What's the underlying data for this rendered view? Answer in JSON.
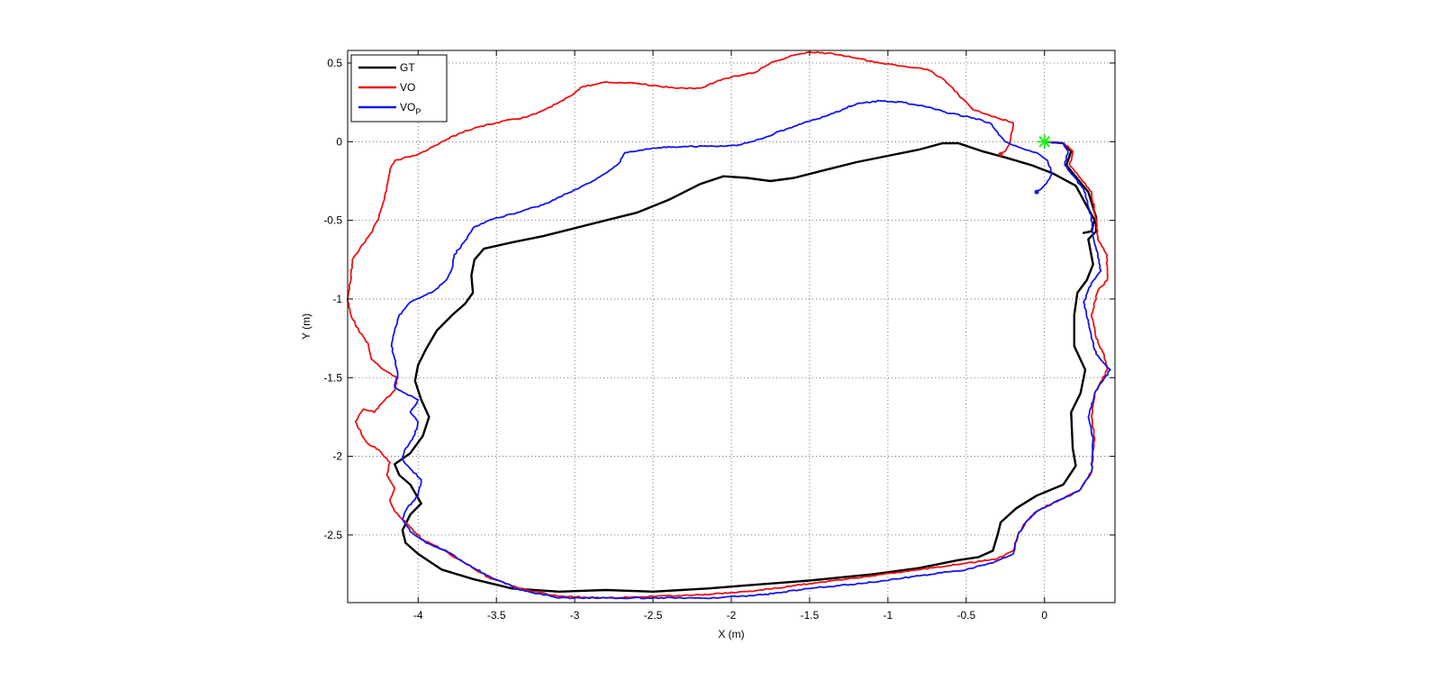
{
  "chart_data": {
    "type": "line",
    "title": "",
    "xlabel": "X (m)",
    "ylabel": "Y (m)",
    "xlim": [
      -4.45,
      0.45
    ],
    "ylim": [
      -2.93,
      0.58
    ],
    "x_ticks": [
      -4,
      -3.5,
      -3,
      -2.5,
      -2,
      -1.5,
      -1,
      -0.5,
      0
    ],
    "y_ticks": [
      0.5,
      0,
      -0.5,
      -1,
      -1.5,
      -2,
      -2.5
    ],
    "x_tick_labels": [
      "-4",
      "-3.5",
      "-3",
      "-2.5",
      "-2",
      "-1.5",
      "-1",
      "-0.5",
      "0"
    ],
    "y_tick_labels": [
      "0.5",
      "0",
      "-0.5",
      "-1",
      "-1.5",
      "-2",
      "-2.5"
    ],
    "grid": true,
    "legend_position": "top-left",
    "start_marker": {
      "x": 0,
      "y": 0,
      "color": "#22ee22",
      "shape": "asterisk"
    },
    "series": [
      {
        "name": "GT",
        "name_main": "GT",
        "name_sub": "",
        "color": "#000000",
        "width": 2.4,
        "jitter": 0,
        "points": [
          [
            0.0,
            0.0
          ],
          [
            0.12,
            -0.01
          ],
          [
            0.17,
            -0.06
          ],
          [
            0.14,
            -0.15
          ],
          [
            0.28,
            -0.32
          ],
          [
            0.33,
            -0.48
          ],
          [
            0.33,
            -0.57
          ],
          [
            0.28,
            -0.62
          ],
          [
            0.31,
            -0.78
          ],
          [
            0.27,
            -0.88
          ],
          [
            0.21,
            -0.96
          ],
          [
            0.19,
            -1.1
          ],
          [
            0.19,
            -1.3
          ],
          [
            0.26,
            -1.45
          ],
          [
            0.23,
            -1.6
          ],
          [
            0.17,
            -1.72
          ],
          [
            0.18,
            -1.95
          ],
          [
            0.2,
            -2.06
          ],
          [
            0.12,
            -2.18
          ],
          [
            -0.05,
            -2.25
          ],
          [
            -0.18,
            -2.33
          ],
          [
            -0.28,
            -2.42
          ],
          [
            -0.3,
            -2.5
          ],
          [
            -0.33,
            -2.6
          ],
          [
            -0.42,
            -2.64
          ],
          [
            -0.55,
            -2.66
          ],
          [
            -0.8,
            -2.71
          ],
          [
            -1.1,
            -2.75
          ],
          [
            -1.5,
            -2.79
          ],
          [
            -1.9,
            -2.82
          ],
          [
            -2.15,
            -2.84
          ],
          [
            -2.5,
            -2.86
          ],
          [
            -2.8,
            -2.85
          ],
          [
            -3.1,
            -2.86
          ],
          [
            -3.4,
            -2.84
          ],
          [
            -3.65,
            -2.78
          ],
          [
            -3.85,
            -2.72
          ],
          [
            -4.0,
            -2.62
          ],
          [
            -4.08,
            -2.55
          ],
          [
            -4.1,
            -2.47
          ],
          [
            -4.05,
            -2.37
          ],
          [
            -3.98,
            -2.3
          ],
          [
            -4.05,
            -2.18
          ],
          [
            -4.12,
            -2.12
          ],
          [
            -4.15,
            -2.05
          ],
          [
            -4.05,
            -1.98
          ],
          [
            -3.97,
            -1.87
          ],
          [
            -3.93,
            -1.75
          ],
          [
            -3.98,
            -1.64
          ],
          [
            -4.02,
            -1.52
          ],
          [
            -4.0,
            -1.42
          ],
          [
            -3.95,
            -1.32
          ],
          [
            -3.88,
            -1.2
          ],
          [
            -3.78,
            -1.1
          ],
          [
            -3.7,
            -1.03
          ],
          [
            -3.65,
            -0.96
          ],
          [
            -3.66,
            -0.85
          ],
          [
            -3.64,
            -0.75
          ],
          [
            -3.58,
            -0.68
          ],
          [
            -3.4,
            -0.64
          ],
          [
            -3.2,
            -0.6
          ],
          [
            -3.0,
            -0.55
          ],
          [
            -2.8,
            -0.5
          ],
          [
            -2.6,
            -0.45
          ],
          [
            -2.4,
            -0.37
          ],
          [
            -2.2,
            -0.27
          ],
          [
            -2.05,
            -0.22
          ],
          [
            -1.9,
            -0.23
          ],
          [
            -1.75,
            -0.25
          ],
          [
            -1.6,
            -0.23
          ],
          [
            -1.4,
            -0.18
          ],
          [
            -1.2,
            -0.13
          ],
          [
            -1.0,
            -0.09
          ],
          [
            -0.8,
            -0.05
          ],
          [
            -0.65,
            -0.01
          ],
          [
            -0.55,
            -0.01
          ],
          [
            -0.4,
            -0.06
          ],
          [
            -0.25,
            -0.1
          ],
          [
            -0.08,
            -0.15
          ],
          [
            0.05,
            -0.2
          ],
          [
            0.2,
            -0.28
          ],
          [
            0.32,
            -0.5
          ],
          [
            0.3,
            -0.57
          ],
          [
            0.25,
            -0.58
          ]
        ]
      },
      {
        "name": "VO",
        "name_main": "VO",
        "name_sub": "",
        "color": "#ee1111",
        "width": 1.8,
        "jitter": 0.7,
        "points": [
          [
            0.0,
            0.0
          ],
          [
            0.12,
            -0.01
          ],
          [
            0.18,
            -0.06
          ],
          [
            0.16,
            -0.15
          ],
          [
            0.3,
            -0.32
          ],
          [
            0.33,
            -0.5
          ],
          [
            0.34,
            -0.62
          ],
          [
            0.4,
            -0.72
          ],
          [
            0.4,
            -0.88
          ],
          [
            0.34,
            -0.95
          ],
          [
            0.3,
            -1.1
          ],
          [
            0.33,
            -1.25
          ],
          [
            0.38,
            -1.35
          ],
          [
            0.4,
            -1.45
          ],
          [
            0.32,
            -1.6
          ],
          [
            0.3,
            -1.75
          ],
          [
            0.32,
            -1.88
          ],
          [
            0.3,
            -2.1
          ],
          [
            0.22,
            -2.22
          ],
          [
            0.05,
            -2.3
          ],
          [
            -0.05,
            -2.35
          ],
          [
            -0.12,
            -2.42
          ],
          [
            -0.17,
            -2.5
          ],
          [
            -0.2,
            -2.6
          ],
          [
            -0.3,
            -2.65
          ],
          [
            -0.5,
            -2.68
          ],
          [
            -0.8,
            -2.72
          ],
          [
            -1.1,
            -2.76
          ],
          [
            -1.5,
            -2.81
          ],
          [
            -1.9,
            -2.86
          ],
          [
            -2.2,
            -2.88
          ],
          [
            -2.5,
            -2.89
          ],
          [
            -2.8,
            -2.9
          ],
          [
            -3.1,
            -2.89
          ],
          [
            -3.35,
            -2.84
          ],
          [
            -3.55,
            -2.77
          ],
          [
            -3.7,
            -2.68
          ],
          [
            -3.85,
            -2.59
          ],
          [
            -3.97,
            -2.53
          ],
          [
            -4.05,
            -2.45
          ],
          [
            -4.15,
            -2.35
          ],
          [
            -4.18,
            -2.28
          ],
          [
            -4.15,
            -2.2
          ],
          [
            -4.2,
            -2.12
          ],
          [
            -4.18,
            -2.04
          ],
          [
            -4.25,
            -1.96
          ],
          [
            -4.32,
            -1.92
          ],
          [
            -4.35,
            -1.88
          ],
          [
            -4.4,
            -1.78
          ],
          [
            -4.35,
            -1.7
          ],
          [
            -4.28,
            -1.72
          ],
          [
            -4.22,
            -1.65
          ],
          [
            -4.15,
            -1.58
          ],
          [
            -4.13,
            -1.5
          ],
          [
            -4.22,
            -1.45
          ],
          [
            -4.3,
            -1.38
          ],
          [
            -4.32,
            -1.28
          ],
          [
            -4.38,
            -1.2
          ],
          [
            -4.43,
            -1.1
          ],
          [
            -4.45,
            -1.0
          ],
          [
            -4.43,
            -0.88
          ],
          [
            -4.42,
            -0.75
          ],
          [
            -4.35,
            -0.65
          ],
          [
            -4.3,
            -0.58
          ],
          [
            -4.25,
            -0.48
          ],
          [
            -4.22,
            -0.38
          ],
          [
            -4.2,
            -0.28
          ],
          [
            -4.18,
            -0.18
          ],
          [
            -4.15,
            -0.12
          ],
          [
            -4.0,
            -0.08
          ],
          [
            -3.85,
            0.0
          ],
          [
            -3.7,
            0.07
          ],
          [
            -3.5,
            0.12
          ],
          [
            -3.3,
            0.16
          ],
          [
            -3.2,
            0.2
          ],
          [
            -3.1,
            0.25
          ],
          [
            -3.0,
            0.31
          ],
          [
            -2.95,
            0.35
          ],
          [
            -2.8,
            0.38
          ],
          [
            -2.6,
            0.37
          ],
          [
            -2.45,
            0.35
          ],
          [
            -2.3,
            0.34
          ],
          [
            -2.2,
            0.34
          ],
          [
            -2.1,
            0.38
          ],
          [
            -2.0,
            0.41
          ],
          [
            -1.85,
            0.44
          ],
          [
            -1.75,
            0.5
          ],
          [
            -1.6,
            0.55
          ],
          [
            -1.5,
            0.57
          ],
          [
            -1.35,
            0.56
          ],
          [
            -1.2,
            0.53
          ],
          [
            -1.05,
            0.5
          ],
          [
            -0.9,
            0.48
          ],
          [
            -0.75,
            0.46
          ],
          [
            -0.65,
            0.4
          ],
          [
            -0.55,
            0.3
          ],
          [
            -0.45,
            0.2
          ],
          [
            -0.3,
            0.15
          ],
          [
            -0.2,
            0.12
          ],
          [
            -0.22,
            0.0
          ],
          [
            -0.25,
            -0.06
          ],
          [
            -0.28,
            -0.08
          ]
        ]
      },
      {
        "name": "VO_P",
        "name_main": "VO",
        "name_sub": "P",
        "color": "#1515ee",
        "width": 1.8,
        "jitter": 0.7,
        "points": [
          [
            0.0,
            0.0
          ],
          [
            0.12,
            -0.01
          ],
          [
            0.15,
            -0.06
          ],
          [
            0.13,
            -0.15
          ],
          [
            0.25,
            -0.3
          ],
          [
            0.3,
            -0.48
          ],
          [
            0.31,
            -0.6
          ],
          [
            0.34,
            -0.72
          ],
          [
            0.36,
            -0.82
          ],
          [
            0.3,
            -0.9
          ],
          [
            0.25,
            -1.02
          ],
          [
            0.28,
            -1.15
          ],
          [
            0.3,
            -1.25
          ],
          [
            0.33,
            -1.35
          ],
          [
            0.42,
            -1.45
          ],
          [
            0.32,
            -1.6
          ],
          [
            0.28,
            -1.75
          ],
          [
            0.31,
            -1.88
          ],
          [
            0.3,
            -2.1
          ],
          [
            0.22,
            -2.22
          ],
          [
            0.05,
            -2.3
          ],
          [
            -0.05,
            -2.35
          ],
          [
            -0.12,
            -2.42
          ],
          [
            -0.17,
            -2.5
          ],
          [
            -0.2,
            -2.62
          ],
          [
            -0.35,
            -2.68
          ],
          [
            -0.5,
            -2.72
          ],
          [
            -0.8,
            -2.76
          ],
          [
            -1.1,
            -2.8
          ],
          [
            -1.5,
            -2.84
          ],
          [
            -1.8,
            -2.88
          ],
          [
            -2.1,
            -2.9
          ],
          [
            -2.5,
            -2.9
          ],
          [
            -2.8,
            -2.9
          ],
          [
            -3.1,
            -2.9
          ],
          [
            -3.35,
            -2.85
          ],
          [
            -3.55,
            -2.76
          ],
          [
            -3.7,
            -2.68
          ],
          [
            -3.82,
            -2.6
          ],
          [
            -3.95,
            -2.55
          ],
          [
            -4.05,
            -2.48
          ],
          [
            -4.1,
            -2.4
          ],
          [
            -4.07,
            -2.33
          ],
          [
            -4.0,
            -2.25
          ],
          [
            -3.98,
            -2.15
          ],
          [
            -4.05,
            -2.08
          ],
          [
            -4.1,
            -2.02
          ],
          [
            -4.08,
            -1.95
          ],
          [
            -4.02,
            -1.86
          ],
          [
            -4.0,
            -1.78
          ],
          [
            -4.05,
            -1.72
          ],
          [
            -4.0,
            -1.64
          ],
          [
            -4.08,
            -1.6
          ],
          [
            -4.15,
            -1.56
          ],
          [
            -4.13,
            -1.48
          ],
          [
            -4.15,
            -1.38
          ],
          [
            -4.17,
            -1.3
          ],
          [
            -4.15,
            -1.2
          ],
          [
            -4.12,
            -1.1
          ],
          [
            -4.05,
            -1.02
          ],
          [
            -3.9,
            -0.95
          ],
          [
            -3.82,
            -0.88
          ],
          [
            -3.78,
            -0.8
          ],
          [
            -3.77,
            -0.72
          ],
          [
            -3.7,
            -0.63
          ],
          [
            -3.65,
            -0.55
          ],
          [
            -3.55,
            -0.5
          ],
          [
            -3.4,
            -0.46
          ],
          [
            -3.2,
            -0.4
          ],
          [
            -3.05,
            -0.33
          ],
          [
            -2.9,
            -0.26
          ],
          [
            -2.8,
            -0.2
          ],
          [
            -2.72,
            -0.14
          ],
          [
            -2.68,
            -0.07
          ],
          [
            -2.5,
            -0.04
          ],
          [
            -2.3,
            -0.03
          ],
          [
            -2.1,
            -0.03
          ],
          [
            -1.95,
            -0.02
          ],
          [
            -1.8,
            0.02
          ],
          [
            -1.65,
            0.08
          ],
          [
            -1.5,
            0.13
          ],
          [
            -1.35,
            0.18
          ],
          [
            -1.2,
            0.24
          ],
          [
            -1.05,
            0.26
          ],
          [
            -0.9,
            0.25
          ],
          [
            -0.75,
            0.22
          ],
          [
            -0.6,
            0.18
          ],
          [
            -0.45,
            0.15
          ],
          [
            -0.35,
            0.12
          ],
          [
            -0.3,
            0.06
          ],
          [
            -0.25,
            0.0
          ],
          [
            -0.15,
            -0.04
          ],
          [
            -0.05,
            -0.07
          ],
          [
            0.02,
            -0.12
          ],
          [
            0.05,
            -0.2
          ],
          [
            0.02,
            -0.25
          ],
          [
            -0.02,
            -0.3
          ],
          [
            -0.05,
            -0.32
          ]
        ]
      }
    ]
  }
}
